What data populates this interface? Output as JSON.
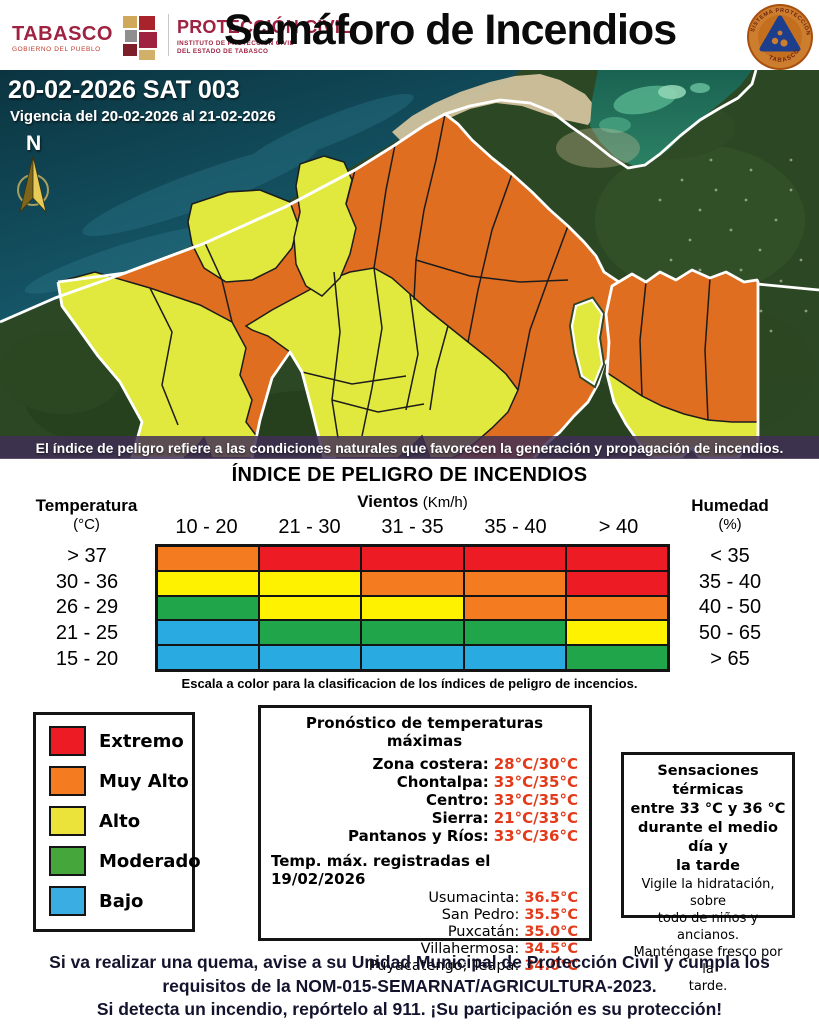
{
  "header": {
    "gov_name": "TABASCO",
    "gov_subtitle": "GOBIERNO DEL PUEBLO",
    "agency_name": "PROTECCIÓN CIVIL",
    "agency_line1": "INSTITUTO DE PROTECCIÓN CIVIL",
    "agency_line2": "DEL ESTADO DE TABASCO",
    "title": "Semáforo de Incendios",
    "seal_top": "SISTEMA PROTECCIÓN CIVIL",
    "seal_bottom": "TABASCO"
  },
  "map": {
    "bulletin_id": "20-02-2026 SAT 003",
    "validity": "Vigencia del 20-02-2026 al 21-02-2026",
    "compass_label": "N",
    "caption": "El índice de peligro refiere a las condiciones naturales que favorecen la generación y propagación de incendios.",
    "colors": {
      "muy_alto": "#DF6E20",
      "alto": "#E2E93E"
    }
  },
  "index_table": {
    "title": "ÍNDICE DE PELIGRO DE INCENDIOS",
    "temp_header": "Temperatura",
    "temp_unit": "(°C)",
    "wind_header": "Vientos",
    "wind_unit": "(Km/h)",
    "hum_header": "Humedad",
    "hum_unit": "(%)",
    "wind_ranges": [
      "10 - 20",
      "21 - 30",
      "31 - 35",
      "35 - 40",
      "> 40"
    ],
    "temp_ranges": [
      "> 37",
      "30 - 36",
      "26 - 29",
      "21 - 25",
      "15 - 20"
    ],
    "hum_ranges": [
      "< 35",
      "35 - 40",
      "40 - 50",
      "50 - 65",
      "> 65"
    ],
    "colors": {
      "red": "#ED1C24",
      "orange": "#F47B20",
      "yellow": "#FFF200",
      "green": "#21A54A",
      "blue": "#29ABE2"
    },
    "cells": [
      [
        "orange",
        "red",
        "red",
        "red",
        "red"
      ],
      [
        "yellow",
        "yellow",
        "orange",
        "orange",
        "red"
      ],
      [
        "green",
        "yellow",
        "yellow",
        "orange",
        "orange"
      ],
      [
        "blue",
        "green",
        "green",
        "green",
        "yellow"
      ],
      [
        "blue",
        "blue",
        "blue",
        "blue",
        "green"
      ]
    ],
    "caption": "Escala a color para la clasificacion de los índices de peligro de incencios."
  },
  "legend": {
    "items": [
      {
        "label": "Extremo",
        "color": "#ED1C24"
      },
      {
        "label": "Muy Alto",
        "color": "#F47B20"
      },
      {
        "label": "Alto",
        "color": "#EBE23A"
      },
      {
        "label": "Moderado",
        "color": "#45A63C"
      },
      {
        "label": "Bajo",
        "color": "#3AAEE2"
      }
    ]
  },
  "forecast": {
    "title": "Pronóstico de temperaturas máximas",
    "value_color": "#E23A1A",
    "regions": [
      {
        "label": "Zona costera:",
        "value": "28°C/30°C"
      },
      {
        "label": "Chontalpa:",
        "value": "33°C/35°C"
      },
      {
        "label": "Centro:",
        "value": "33°C/35°C"
      },
      {
        "label": "Sierra:",
        "value": "21°C/33°C"
      },
      {
        "label": "Pantanos y Ríos:",
        "value": "33°C/36°C"
      }
    ],
    "recorded_title": "Temp. máx. registradas el 19/02/2026",
    "stations": [
      {
        "label": "Usumacinta:",
        "value": "36.5°C"
      },
      {
        "label": "San Pedro:",
        "value": "35.5°C"
      },
      {
        "label": "Puxcatán:",
        "value": "35.0°C"
      },
      {
        "label": "Villahermosa:",
        "value": "34.5°C"
      },
      {
        "label": "Puyacatengo; Teapa:",
        "value": "34.0°C"
      }
    ]
  },
  "thermal": {
    "bold_lines": [
      "Sensaciones térmicas",
      "entre 33 °C y 36 °C",
      "durante el medio día y",
      "la tarde"
    ],
    "normal_lines": [
      "Vigile la hidratación, sobre",
      "todo de niños y ancianos.",
      "Manténgase fresco por la",
      "tarde."
    ]
  },
  "footer": {
    "lines": [
      "Si va realizar una quema, avise a su Unidad Municipal de Protección Civil y cumpla los",
      "requisitos de la NOM-015-SEMARNAT/AGRICULTURA-2023.",
      "Si detecta un incendio, repórtelo al 911. ¡Su participación es su protección!"
    ]
  }
}
